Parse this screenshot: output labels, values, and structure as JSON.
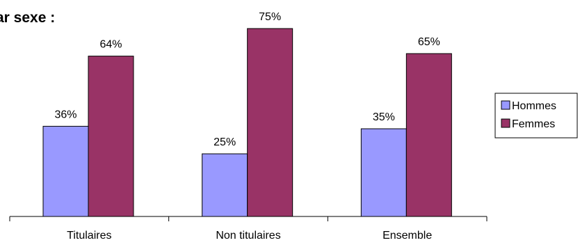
{
  "chart_data": {
    "type": "bar",
    "title": "ar sexe :",
    "categories": [
      "Titulaires",
      "Non titulaires",
      "Ensemble"
    ],
    "series": [
      {
        "name": "Hommes",
        "values": [
          36,
          25,
          35
        ],
        "labels": [
          "36%",
          "25%",
          "35%"
        ],
        "color": "#9999ff"
      },
      {
        "name": "Femmes",
        "values": [
          64,
          75,
          65
        ],
        "labels": [
          "64%",
          "75%",
          "65%"
        ],
        "color": "#993366"
      }
    ],
    "ylim": [
      0,
      80
    ],
    "grid": false,
    "legend": "right"
  }
}
